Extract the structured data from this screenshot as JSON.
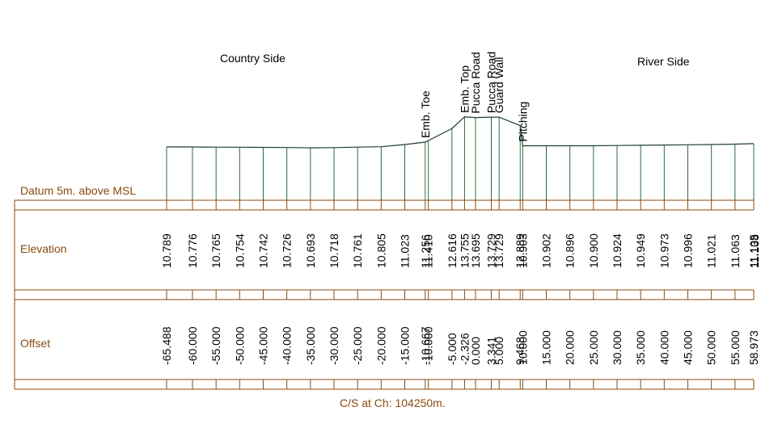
{
  "colors": {
    "section_line": "#1E3F2A",
    "station_line": "#2E6B3A",
    "frame": "#8B4A0E",
    "label_text": "#8B4A0E",
    "value_text": "#000000"
  },
  "headings": {
    "country_side": "Country Side",
    "river_side": "River Side"
  },
  "row_labels": {
    "datum": "Datum 5m. above MSL",
    "elevation": "Elevation",
    "offset": "Offset"
  },
  "caption": "C/S at Ch: 104250m.",
  "chart_data": {
    "type": "line",
    "title": "C/S at Ch: 104250m.",
    "xlabel": "Offset",
    "ylabel": "Elevation",
    "points": [
      {
        "offset": "-65.488",
        "elevation": "10.789",
        "x": -65.488,
        "y": 10.789,
        "feature": ""
      },
      {
        "offset": "-60.000",
        "elevation": "10.776",
        "x": -60.0,
        "y": 10.776,
        "feature": ""
      },
      {
        "offset": "-55.000",
        "elevation": "10.765",
        "x": -55.0,
        "y": 10.765,
        "feature": ""
      },
      {
        "offset": "-50.000",
        "elevation": "10.754",
        "x": -50.0,
        "y": 10.754,
        "feature": ""
      },
      {
        "offset": "-45.000",
        "elevation": "10.742",
        "x": -45.0,
        "y": 10.742,
        "feature": ""
      },
      {
        "offset": "-40.000",
        "elevation": "10.726",
        "x": -40.0,
        "y": 10.726,
        "feature": ""
      },
      {
        "offset": "-35.000",
        "elevation": "10.693",
        "x": -35.0,
        "y": 10.693,
        "feature": ""
      },
      {
        "offset": "-30.000",
        "elevation": "10.718",
        "x": -30.0,
        "y": 10.718,
        "feature": ""
      },
      {
        "offset": "-25.000",
        "elevation": "10.761",
        "x": -25.0,
        "y": 10.761,
        "feature": ""
      },
      {
        "offset": "-20.000",
        "elevation": "10.805",
        "x": -20.0,
        "y": 10.805,
        "feature": ""
      },
      {
        "offset": "-15.000",
        "elevation": "11.023",
        "x": -15.0,
        "y": 11.023,
        "feature": ""
      },
      {
        "offset": "-10.667",
        "elevation": "11.256",
        "x": -10.667,
        "y": 11.256,
        "feature": "Emb. Toe"
      },
      {
        "offset": "-10.000",
        "elevation": "11.410",
        "x": -10.0,
        "y": 11.41,
        "feature": ""
      },
      {
        "offset": "-5.000",
        "elevation": "12.616",
        "x": -5.0,
        "y": 12.616,
        "feature": ""
      },
      {
        "offset": "-2.326",
        "elevation": "13.755",
        "x": -2.326,
        "y": 13.755,
        "feature": "Emb. Top"
      },
      {
        "offset": "0.000",
        "elevation": "13.695",
        "x": 0.0,
        "y": 13.695,
        "feature": "Pucca Road"
      },
      {
        "offset": "3.341",
        "elevation": "13.729",
        "x": 3.341,
        "y": 13.729,
        "feature": "Pucca Road"
      },
      {
        "offset": "5.000",
        "elevation": "13.729",
        "x": 5.0,
        "y": 13.729,
        "feature": "Guard Wall"
      },
      {
        "offset": "9.468",
        "elevation": "12.889",
        "x": 9.468,
        "y": 12.889,
        "feature": ""
      },
      {
        "offset": "10.000",
        "elevation": "10.903",
        "x": 10.0,
        "y": 10.903,
        "feature": "Pitching"
      },
      {
        "offset": "15.000",
        "elevation": "10.902",
        "x": 15.0,
        "y": 10.902,
        "feature": ""
      },
      {
        "offset": "20.000",
        "elevation": "10.896",
        "x": 20.0,
        "y": 10.896,
        "feature": ""
      },
      {
        "offset": "25.000",
        "elevation": "10.900",
        "x": 25.0,
        "y": 10.9,
        "feature": ""
      },
      {
        "offset": "30.000",
        "elevation": "10.924",
        "x": 30.0,
        "y": 10.924,
        "feature": ""
      },
      {
        "offset": "35.000",
        "elevation": "10.949",
        "x": 35.0,
        "y": 10.949,
        "feature": ""
      },
      {
        "offset": "40.000",
        "elevation": "10.973",
        "x": 40.0,
        "y": 10.973,
        "feature": ""
      },
      {
        "offset": "45.000",
        "elevation": "10.996",
        "x": 45.0,
        "y": 10.996,
        "feature": ""
      },
      {
        "offset": "50.000",
        "elevation": "11.021",
        "x": 50.0,
        "y": 11.021,
        "feature": ""
      },
      {
        "offset": "55.000",
        "elevation": "11.063",
        "x": 55.0,
        "y": 11.063,
        "feature": ""
      },
      {
        "offset": "58.973",
        "elevation": "11.105",
        "x": 58.973,
        "y": 11.105,
        "feature": ""
      }
    ],
    "extra_elevation_labels": [
      "11.138"
    ]
  }
}
